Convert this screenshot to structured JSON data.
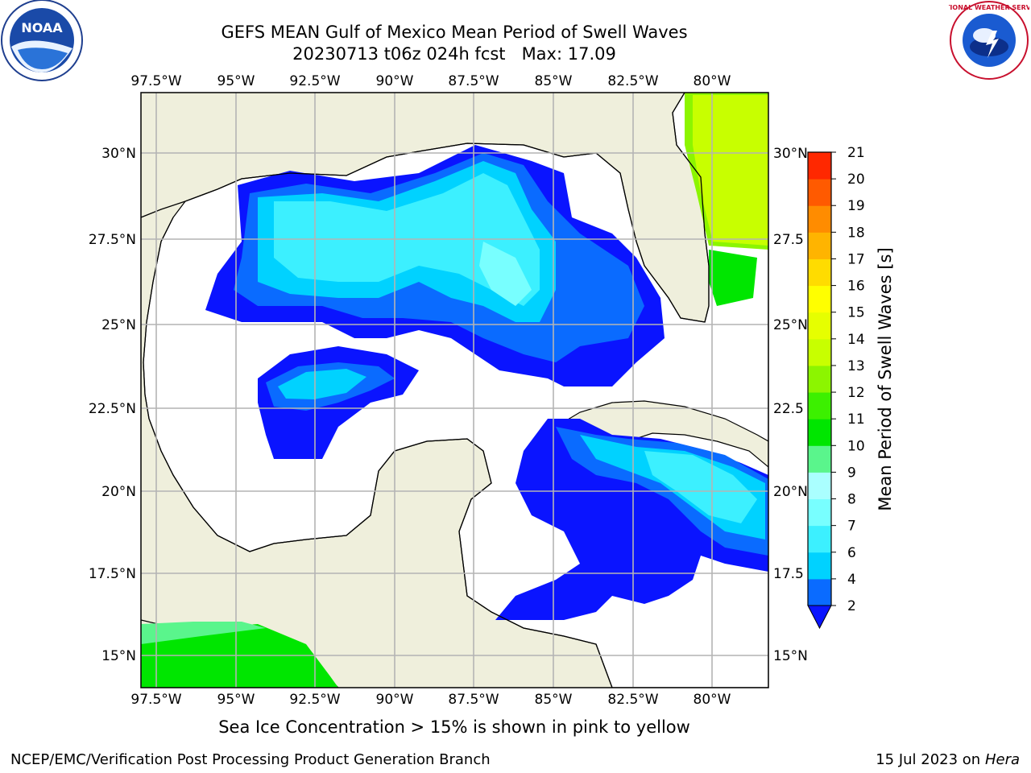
{
  "header": {
    "title_line1": "GEFS MEAN Gulf of Mexico Mean Period of Swell Waves",
    "title_line2": "20230713 t06z 024h fcst   Max: 17.09"
  },
  "logos": {
    "left": {
      "name": "noaa-logo",
      "text": "NOAA"
    },
    "right": {
      "name": "nws-logo",
      "text": "NATIONAL WEATHER SERVICE"
    }
  },
  "map": {
    "lon_labels": [
      "97.5°W",
      "95°W",
      "92.5°W",
      "90°W",
      "87.5°W",
      "85°W",
      "82.5°W",
      "80°W"
    ],
    "lat_labels_left": [
      "30°N",
      "27.5°N",
      "25°N",
      "22.5°N",
      "20°N",
      "17.5°N",
      "15°N"
    ],
    "lat_labels_right": [
      "30°N",
      "27.5",
      "25°N",
      "22.5",
      "20°N",
      "17.5",
      "15°N"
    ],
    "colors": {
      "land": "#efefdc",
      "ocean": "#ffffff",
      "grid": "#b4b4b4",
      "coast": "#000000"
    }
  },
  "colorbar": {
    "label": "Mean Period of Swell Waves [s]",
    "ticks": [
      "2",
      "4",
      "6",
      "7",
      "8",
      "9",
      "10",
      "11",
      "12",
      "13",
      "14",
      "15",
      "16",
      "17",
      "18",
      "19",
      "20",
      "21"
    ],
    "colors": [
      "#0a6bff",
      "#00d2ff",
      "#3cf0ff",
      "#78ffff",
      "#aaffff",
      "#5af58c",
      "#00e600",
      "#3cf000",
      "#8cf500",
      "#c8ff00",
      "#e6ff00",
      "#ffff00",
      "#ffdc00",
      "#ffb400",
      "#ff8c00",
      "#ff5a00",
      "#ff2800"
    ],
    "extend_color": "#0a14ff"
  },
  "footer": {
    "caption": "Sea Ice Concentration > 15% is shown in pink to yellow",
    "left": "NCEP/EMC/Verification Post Processing Product Generation Branch",
    "right_date": "15 Jul 2023 on",
    "right_machine": "Hera"
  }
}
